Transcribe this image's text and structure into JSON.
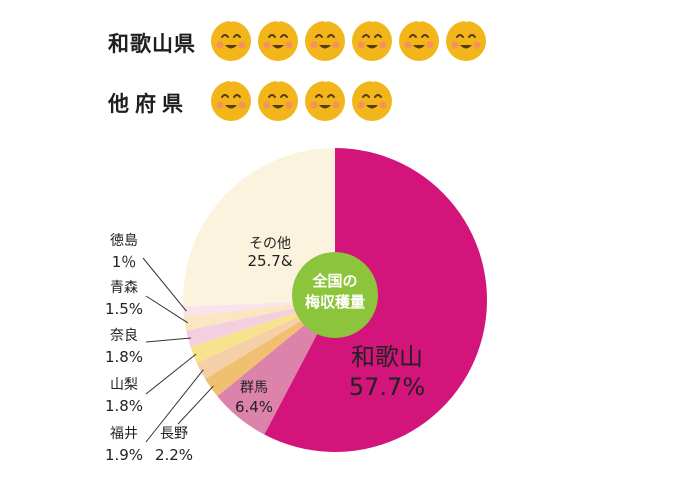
{
  "ranking": {
    "rows": [
      {
        "label": "和歌山県",
        "count": 6
      },
      {
        "label": "他府県",
        "count": 4
      }
    ],
    "icon": "smiling-ume-plum-icon",
    "icon_color": "#f2b51a"
  },
  "chart_data": {
    "type": "pie",
    "center_label": "全国の\n梅収穫量",
    "start": "12-o'clock",
    "direction": "clockwise",
    "slices": [
      {
        "name": "和歌山",
        "value": 57.7,
        "label": "57.7%",
        "color": "#d3147a"
      },
      {
        "name": "群馬",
        "value": 6.4,
        "label": "6.4%",
        "color": "#dc83ab"
      },
      {
        "name": "長野",
        "value": 2.2,
        "label": "2.2%",
        "color": "#f0c070"
      },
      {
        "name": "福井",
        "value": 1.9,
        "label": "1.9%",
        "color": "#f5cfa8"
      },
      {
        "name": "山梨",
        "value": 1.8,
        "label": "1.8%",
        "color": "#f8e28c"
      },
      {
        "name": "奈良",
        "value": 1.8,
        "label": "1.8%",
        "color": "#f4cfe0"
      },
      {
        "name": "青森",
        "value": 1.5,
        "label": "1.5%",
        "color": "#fae6c0"
      },
      {
        "name": "徳島",
        "value": 1.0,
        "label": "1％",
        "color": "#fbe3ee"
      },
      {
        "name": "その他",
        "value": 25.7,
        "label": "25.7&",
        "color": "#fcf3df"
      }
    ],
    "center_color": "#8cc43c"
  }
}
